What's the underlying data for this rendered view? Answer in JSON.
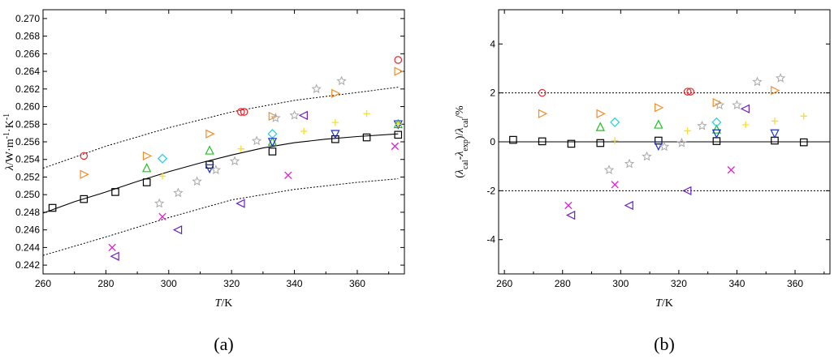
{
  "panels": {
    "a": "(a)",
    "b": "(b)"
  },
  "chart_data": [
    {
      "type": "scatter",
      "title": "",
      "xlabel": "T/K",
      "ylabel": "λ/W·m⁻¹·K⁻¹",
      "xlim": [
        260,
        375
      ],
      "ylim": [
        0.241,
        0.271
      ],
      "xticks": [
        260,
        280,
        300,
        320,
        340,
        360
      ],
      "yticks": [
        0.242,
        0.244,
        0.246,
        0.248,
        0.25,
        0.252,
        0.254,
        0.256,
        0.258,
        0.26,
        0.262,
        0.264,
        0.266,
        0.268,
        0.27
      ],
      "lines": [
        {
          "style": "solid",
          "color": "#000000",
          "x": [
            260,
            270,
            280,
            290,
            300,
            310,
            320,
            330,
            340,
            350,
            360,
            373
          ],
          "y": [
            0.2479,
            0.2492,
            0.2503,
            0.2515,
            0.2526,
            0.2536,
            0.2545,
            0.2553,
            0.2559,
            0.2563,
            0.2566,
            0.2569
          ]
        },
        {
          "style": "dotted",
          "color": "#000000",
          "x": [
            260,
            280,
            300,
            320,
            340,
            360,
            373
          ],
          "y": [
            0.253,
            0.2555,
            0.2576,
            0.2594,
            0.2607,
            0.2616,
            0.2622
          ]
        },
        {
          "style": "dotted",
          "color": "#000000",
          "x": [
            260,
            280,
            300,
            320,
            340,
            360,
            373
          ],
          "y": [
            0.2431,
            0.2452,
            0.2474,
            0.2494,
            0.2506,
            0.2514,
            0.2518
          ]
        }
      ],
      "series": [
        {
          "marker": "square",
          "color": "#000000",
          "x": [
            263,
            273,
            283,
            293,
            313,
            333,
            353,
            363,
            373
          ],
          "y": [
            0.2485,
            0.2495,
            0.2503,
            0.2514,
            0.2534,
            0.2549,
            0.2563,
            0.2565,
            0.2568
          ]
        },
        {
          "marker": "circle",
          "color": "#e8252a",
          "x": [
            273,
            323,
            324,
            373
          ],
          "y": [
            0.2544,
            0.2594,
            0.2594,
            0.2653
          ]
        },
        {
          "marker": "triangle-right",
          "color": "#f28c28",
          "x": [
            273,
            293,
            313,
            333,
            353,
            373
          ],
          "y": [
            0.2523,
            0.2544,
            0.2569,
            0.2589,
            0.2615,
            0.264
          ]
        },
        {
          "marker": "triangle-up",
          "color": "#22c022",
          "x": [
            293,
            313,
            333,
            373
          ],
          "y": [
            0.253,
            0.255,
            0.256,
            0.258
          ]
        },
        {
          "marker": "diamond",
          "color": "#20d0e0",
          "x": [
            298,
            333
          ],
          "y": [
            0.2541,
            0.2569
          ]
        },
        {
          "marker": "triangle-down",
          "color": "#1a2fd0",
          "x": [
            313,
            333,
            353,
            373
          ],
          "y": [
            0.253,
            0.256,
            0.2569,
            0.258
          ]
        },
        {
          "marker": "star",
          "color": "#a8a8a8",
          "x": [
            297,
            303,
            309,
            315,
            321,
            328,
            334,
            340,
            347,
            355
          ],
          "y": [
            0.249,
            0.2502,
            0.2515,
            0.2528,
            0.2538,
            0.2561,
            0.2587,
            0.259,
            0.262,
            0.2629
          ]
        },
        {
          "marker": "plus",
          "color": "#f8e020",
          "x": [
            298,
            323,
            343,
            353,
            363,
            373
          ],
          "y": [
            0.2521,
            0.2552,
            0.2572,
            0.2582,
            0.2592,
            0.258
          ]
        },
        {
          "marker": "x",
          "color": "#e020d0",
          "x": [
            282,
            298,
            338,
            372
          ],
          "y": [
            0.244,
            0.2475,
            0.2522,
            0.2555
          ]
        },
        {
          "marker": "triangle-left",
          "color": "#6a20c0",
          "x": [
            283,
            303,
            323,
            343
          ],
          "y": [
            0.243,
            0.246,
            0.249,
            0.259
          ]
        }
      ]
    },
    {
      "type": "scatter",
      "title": "",
      "xlabel": "T/K",
      "ylabel": "(λcal-λexp)/λcal/%",
      "xlim": [
        258,
        372
      ],
      "ylim": [
        -5.4,
        5.4
      ],
      "xticks": [
        260,
        280,
        300,
        320,
        340,
        360
      ],
      "yticks": [
        -4,
        -2,
        0,
        2,
        4
      ],
      "lines": [
        {
          "style": "solid",
          "color": "#000000",
          "x": [
            258,
            372
          ],
          "y": [
            0,
            0
          ]
        },
        {
          "style": "dotted",
          "color": "#000000",
          "x": [
            258,
            372
          ],
          "y": [
            2,
            2
          ]
        },
        {
          "style": "dotted",
          "color": "#000000",
          "x": [
            258,
            372
          ],
          "y": [
            -2,
            -2
          ]
        }
      ],
      "series": [
        {
          "marker": "square",
          "color": "#000000",
          "x": [
            263,
            273,
            283,
            293,
            313,
            333,
            353,
            363
          ],
          "y": [
            0.08,
            0.02,
            -0.08,
            -0.05,
            0.05,
            0.03,
            0.05,
            -0.02
          ]
        },
        {
          "marker": "circle",
          "color": "#e8252a",
          "x": [
            273,
            323,
            324
          ],
          "y": [
            2.0,
            2.05,
            2.05
          ]
        },
        {
          "marker": "triangle-right",
          "color": "#f28c28",
          "x": [
            273,
            293,
            313,
            333,
            353
          ],
          "y": [
            1.15,
            1.15,
            1.4,
            1.6,
            2.1
          ]
        },
        {
          "marker": "triangle-up",
          "color": "#22c022",
          "x": [
            293,
            313,
            333
          ],
          "y": [
            0.6,
            0.7,
            0.5
          ]
        },
        {
          "marker": "diamond",
          "color": "#20d0e0",
          "x": [
            298,
            333
          ],
          "y": [
            0.8,
            0.8
          ]
        },
        {
          "marker": "triangle-down",
          "color": "#1a2fd0",
          "x": [
            313,
            333,
            353
          ],
          "y": [
            -0.15,
            0.35,
            0.35
          ]
        },
        {
          "marker": "star",
          "color": "#a8a8a8",
          "x": [
            296,
            303,
            309,
            315,
            321,
            328,
            334,
            340,
            347,
            355
          ],
          "y": [
            -1.15,
            -0.9,
            -0.6,
            -0.2,
            -0.05,
            0.65,
            1.5,
            1.5,
            2.45,
            2.6
          ]
        },
        {
          "marker": "plus",
          "color": "#f8e020",
          "x": [
            298,
            323,
            343,
            353,
            363
          ],
          "y": [
            0.05,
            0.45,
            0.7,
            0.85,
            1.05
          ]
        },
        {
          "marker": "x",
          "color": "#e020d0",
          "x": [
            282,
            298,
            338
          ],
          "y": [
            -2.6,
            -1.75,
            -1.15
          ]
        },
        {
          "marker": "triangle-left",
          "color": "#6a20c0",
          "x": [
            283,
            303,
            323,
            343
          ],
          "y": [
            -3.0,
            -2.6,
            -2.0,
            1.35
          ]
        }
      ]
    }
  ]
}
